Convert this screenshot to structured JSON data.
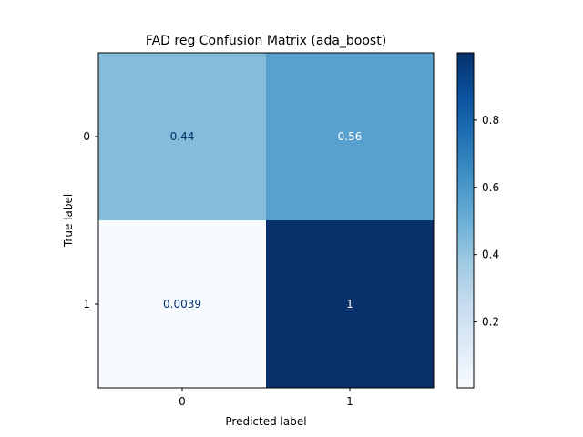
{
  "chart_data": {
    "type": "heatmap",
    "title": "FAD reg Confusion Matrix (ada_boost)",
    "xlabel": "Predicted label",
    "ylabel": "True label",
    "x_categories": [
      "0",
      "1"
    ],
    "y_categories": [
      "0",
      "1"
    ],
    "values": [
      [
        0.44,
        0.56
      ],
      [
        0.0039,
        1.0
      ]
    ],
    "cell_labels": [
      [
        "0.44",
        "0.56"
      ],
      [
        "0.0039",
        "1"
      ]
    ],
    "colormap": "Blues",
    "colorbar": {
      "range": [
        0.0039,
        1.0
      ],
      "ticks": [
        0.2,
        0.4,
        0.6,
        0.8
      ],
      "tick_labels": [
        "0.2",
        "0.4",
        "0.6",
        "0.8"
      ]
    },
    "grid": false
  }
}
